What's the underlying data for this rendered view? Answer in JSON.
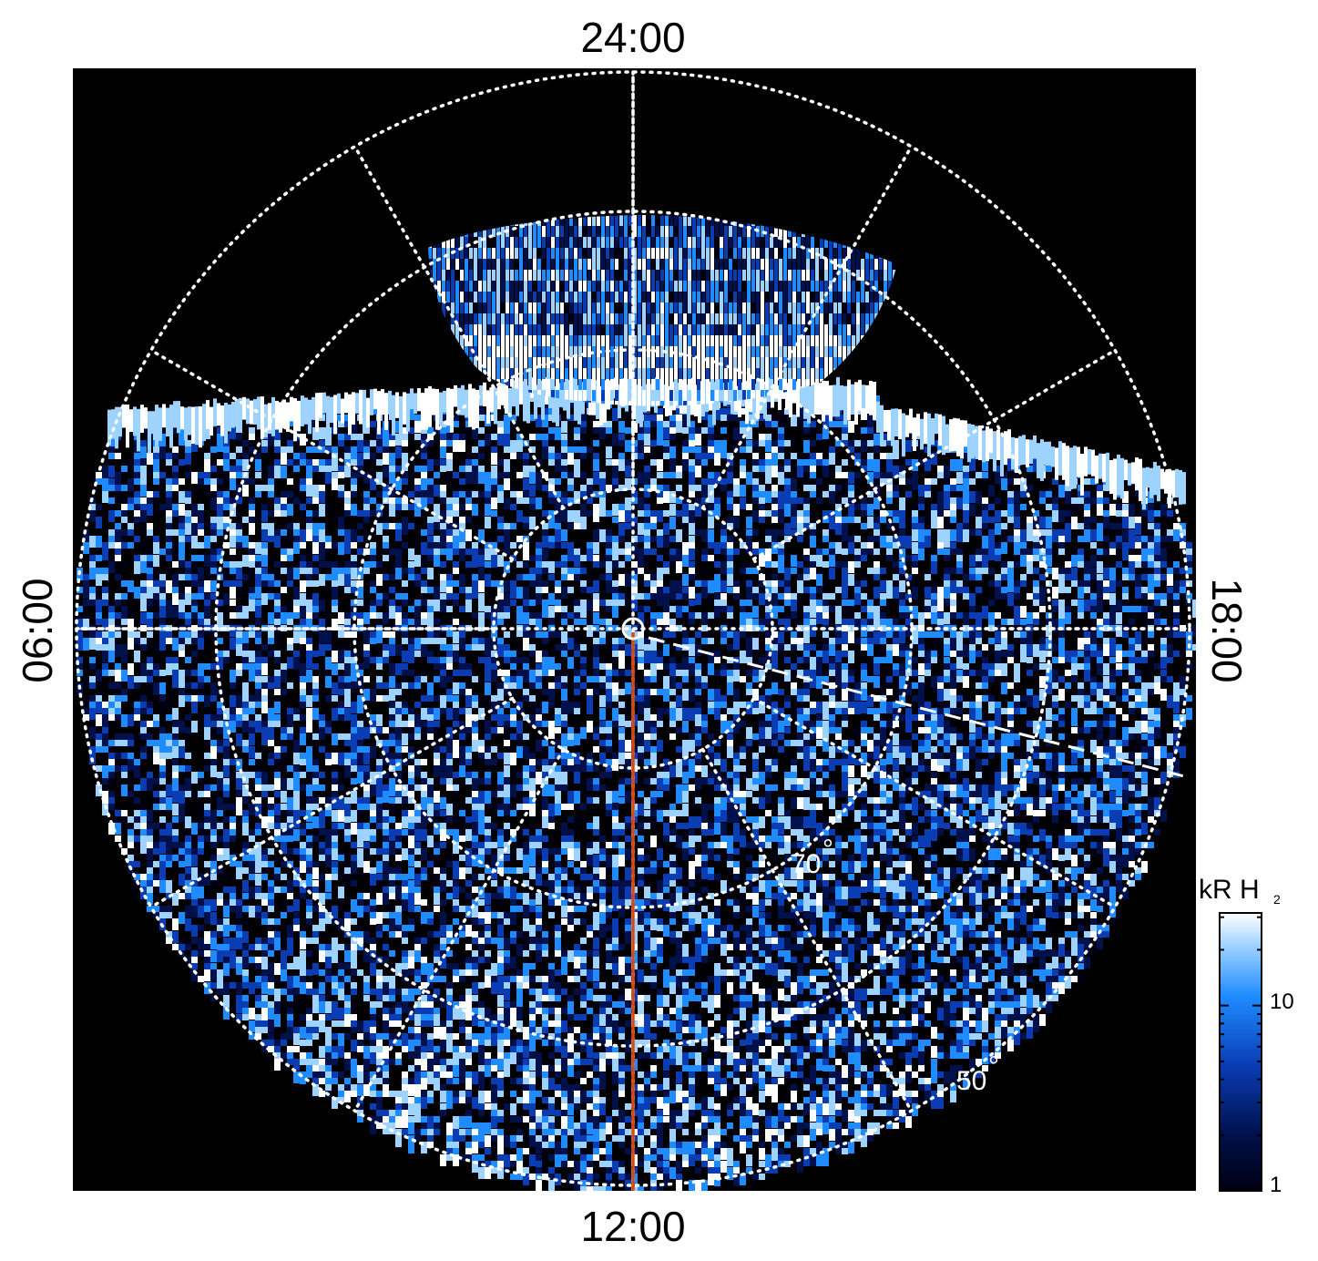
{
  "figure": {
    "local_time_labels": {
      "top": "24:00",
      "bottom": "12:00",
      "left": "06:00",
      "right": "18:00"
    },
    "latitude_labels": {
      "inner": "70",
      "outer": "50"
    },
    "colorbar": {
      "unit_label": "kR H",
      "unit_subscript": "2",
      "ticks": [
        "1",
        "10"
      ],
      "scale": "log",
      "colors": [
        "#000010",
        "#00104a",
        "#0a3cb4",
        "#1e8cff",
        "#9ed2ff",
        "#ffffff"
      ]
    },
    "colors": {
      "background": "#000000",
      "grid": "#ffffff",
      "meridian_line": "#d9480f"
    }
  }
}
